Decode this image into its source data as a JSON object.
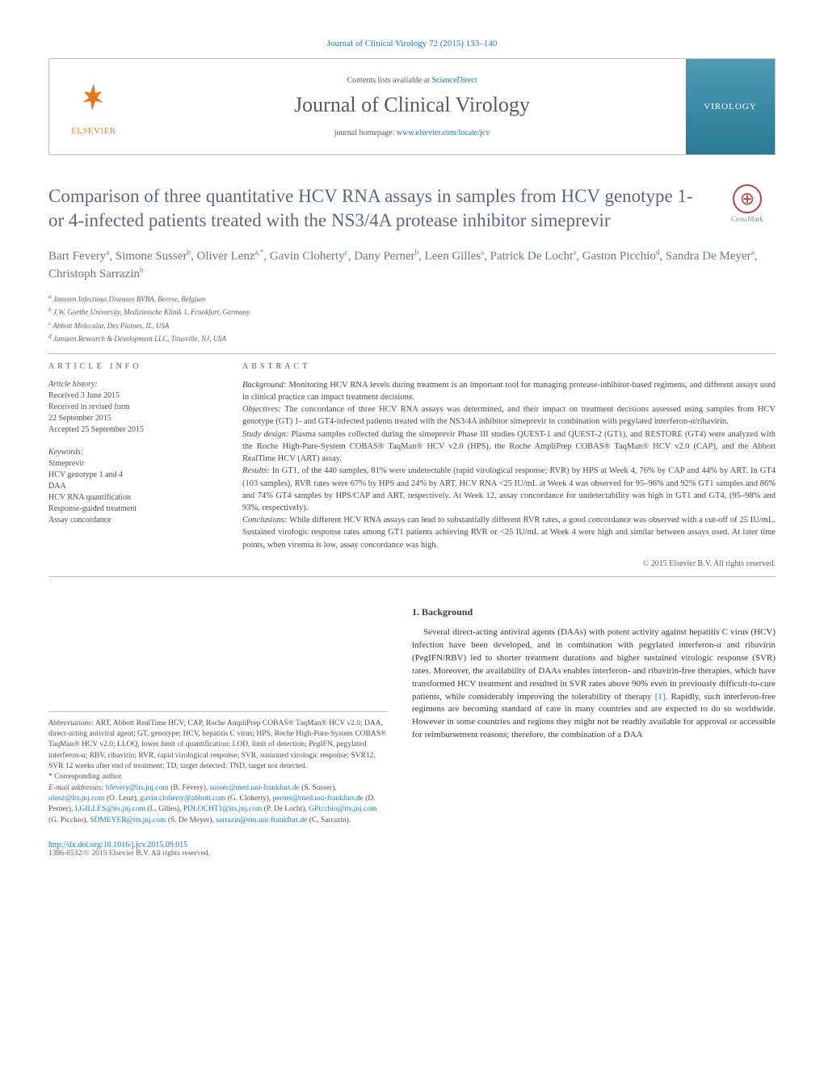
{
  "journal_ref": "Journal of Clinical Virology 72 (2015) 133–140",
  "header": {
    "contents_prefix": "Contents lists available at ",
    "contents_link": "ScienceDirect",
    "journal_name": "Journal of Clinical Virology",
    "homepage_prefix": "journal homepage: ",
    "homepage_link": "www.elsevier.com/locate/jcv",
    "publisher": "ELSEVIER",
    "cover_label": "VIROLOGY"
  },
  "title": "Comparison of three quantitative HCV RNA assays in samples from HCV genotype 1- or 4-infected patients treated with the NS3/4A protease inhibitor simeprevir",
  "crossmark": "CrossMark",
  "authors_html": "Bart Fevery<sup>a</sup>, Simone Susser<sup>b</sup>, Oliver Lenz<sup>a,*</sup>, Gavin Cloherty<sup>c</sup>, Dany Perner<sup>b</sup>, Leen Gilles<sup>a</sup>, Patrick De Locht<sup>a</sup>, Gaston Picchio<sup>d</sup>, Sandra De Meyer<sup>a</sup>, Christoph Sarrazin<sup>b</sup>",
  "affiliations": [
    "a Janssen Infectious Diseases BVBA, Beerse, Belgium",
    "b J.W. Goethe University, Medizinische Klinik 1, Frankfurt, Germany",
    "c Abbott Molecular, Des Plaines, IL, USA",
    "d Janssen Research & Development LLC, Titusville, NJ, USA"
  ],
  "article_info": {
    "label": "ARTICLE INFO",
    "history_hdr": "Article history:",
    "history": [
      "Received 3 June 2015",
      "Received in revised form",
      "22 September 2015",
      "Accepted 25 September 2015"
    ],
    "keywords_hdr": "Keywords:",
    "keywords": [
      "Simeprevir",
      "HCV genotype 1 and 4",
      "DAA",
      "HCV RNA quantification",
      "Response-guided treatment",
      "Assay concordance"
    ]
  },
  "abstract": {
    "label": "ABSTRACT",
    "segments": {
      "background_hdr": "Background:",
      "background": " Monitoring HCV RNA levels during treatment is an important tool for managing protease-inhibitor-based regimens, and different assays used in clinical practice can impact treatment decisions.",
      "objectives_hdr": "Objectives:",
      "objectives": " The concordance of three HCV RNA assays was determined, and their impact on treatment decisions assessed using samples from HCV genotype (GT) 1- and GT4-infected patients treated with the NS3/4A inhibitor simeprevir in combination with pegylated interferon-α/ribavirin.",
      "study_hdr": "Study design:",
      "study": " Plasma samples collected during the simeprevir Phase III studies QUEST-1 and QUEST-2 (GT1), and RESTORE (GT4) were analyzed with the Roche High-Pure-System COBAS® TaqMan® HCV v2.0 (HPS), the Roche AmpliPrep COBAS® TaqMan® HCV v2.0 (CAP), and the Abbott RealTime HCV (ART) assay.",
      "results_hdr": "Results:",
      "results": " In GT1, of the 440 samples, 81% were undetectable (rapid virological response; RVR) by HPS at Week 4, 76% by CAP and 44% by ART. In GT4 (103 samples), RVR rates were 67% by HPS and 24% by ART. HCV RNA <25 IU/mL at Week 4 was observed for 95–96% and 92% GT1 samples and 86% and 74% GT4 samples by HPS/CAP and ART, respectively. At Week 12, assay concordance for undetectability was high in GT1 and GT4, (95–98% and 93%, respectively).",
      "conclusions_hdr": "Conclusions:",
      "conclusions": " While different HCV RNA assays can lead to substantially different RVR rates, a good concordance was observed with a cut-off of 25 IU/mL. Sustained virologic response rates among GT1 patients achieving RVR or <25 IU/mL at Week 4 were high and similar between assays used. At later time points, when viremia is low, assay concordance was high."
    },
    "copyright": "© 2015 Elsevier B.V. All rights reserved."
  },
  "footnotes": {
    "abbrev_hdr": "Abbreviations:",
    "abbrev": " ART, Abbott RealTime HCV; CAP, Roche AmpliPrep COBAS® TaqMan® HCV v2.0; DAA, direct-acting antiviral agent; GT, genotype; HCV, hepatitis C virus; HPS, Roche High-Pure-System COBAS® TaqMan® HCV v2.0; LLOQ, lower limit of quantification; LOD, limit of detection; PegIFN, pegylated interferon-α; RBV, ribavirin; RVR, rapid virological response; SVR, sustained virologic response; SVR12, SVR 12 weeks after end of treatment; TD, target detected; TND, target not detected.",
    "corr": "* Corresponding author.",
    "email_hdr": "E-mail addresses:",
    "emails": " bfevery@its.jnj.com (B. Fevery), susser@med.uni-frankfurt.de (S. Susser), olenz@its.jnj.com (O. Lenz), gavin.cloherty@abbott.com (G. Cloherty), perner@med.uni-frankfurt.de (D. Perner), LGILLES@its.jnj.com (L. Gilles), PDLOCHT1@its.jnj.com (P. De Locht), GPicchio@its.jnj.com (G. Picchio), SDMEYER@its.jnj.com (S. De Meyer), sarrazin@em.uni-frankfurt.de (C. Sarrazin)."
  },
  "body": {
    "heading": "1. Background",
    "para": "Several direct-acting antiviral agents (DAAs) with potent activity against hepatitis C virus (HCV) infection have been developed, and in combination with pegylated interferon-α and ribavirin (PegIFN/RBV) led to shorter treatment durations and higher sustained virologic response (SVR) rates. Moreover, the availability of DAAs enables interferon- and ribavirin-free therapies, which have transformed HCV treatment and resulted in SVR rates above 90% even in previously difficult-to-cure patients, while considerably improving the tolerability of therapy [1]. Rapidly, such interferon-free regimens are becoming standard of care in many countries and are expected to do so worldwide. However in some countries and regions they might not be readily available for approval or accessible for reimbursement reasons; therefore, the combination of a DAA"
  },
  "doi": {
    "link": "http://dx.doi.org/10.1016/j.jcv.2015.09.015",
    "issn": "1386-6532/© 2015 Elsevier B.V. All rights reserved."
  },
  "colors": {
    "link": "#1a7ab5",
    "elsevier": "#e87722",
    "title": "#5a6a7a",
    "text": "#3a3a3a",
    "border": "#bfbfbf"
  }
}
